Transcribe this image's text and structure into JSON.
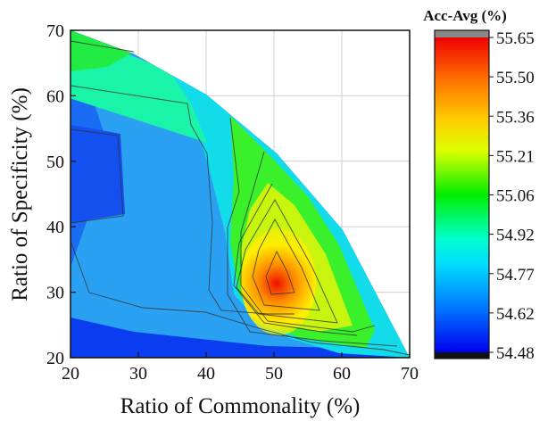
{
  "chart_data": {
    "type": "heatmap",
    "subtype": "filled-contour",
    "title": "",
    "xlabel": "Ratio of Commonality (%)",
    "ylabel": "Ratio of Specificity (%)",
    "xlim": [
      20,
      70
    ],
    "ylim": [
      20,
      70
    ],
    "x_ticks": [
      "20",
      "30",
      "40",
      "50",
      "60",
      "70"
    ],
    "y_ticks": [
      "20",
      "30",
      "40",
      "50",
      "60",
      "70"
    ],
    "grid": true,
    "colorbar": {
      "title": "Acc-Avg (%)",
      "range": [
        54.48,
        55.65
      ],
      "labels": [
        "55.65",
        "55.50",
        "55.36",
        "55.21",
        "55.06",
        "54.92",
        "54.77",
        "54.62",
        "54.48"
      ],
      "colormap": "jet",
      "over_color": "#888888",
      "under_color": "#111111"
    },
    "x": [
      20,
      30,
      40,
      50,
      60,
      70
    ],
    "y": [
      20,
      30,
      40,
      50,
      60,
      70
    ],
    "z": [
      [
        54.5,
        54.52,
        54.56,
        54.62,
        54.68,
        54.72
      ],
      [
        54.58,
        54.6,
        54.66,
        55.62,
        55.1,
        null
      ],
      [
        54.62,
        54.63,
        54.7,
        55.36,
        null,
        null
      ],
      [
        54.55,
        54.6,
        54.72,
        null,
        null,
        null
      ],
      [
        54.66,
        54.68,
        null,
        null,
        null,
        null
      ],
      [
        55.0,
        null,
        null,
        null,
        null,
        null
      ]
    ]
  }
}
